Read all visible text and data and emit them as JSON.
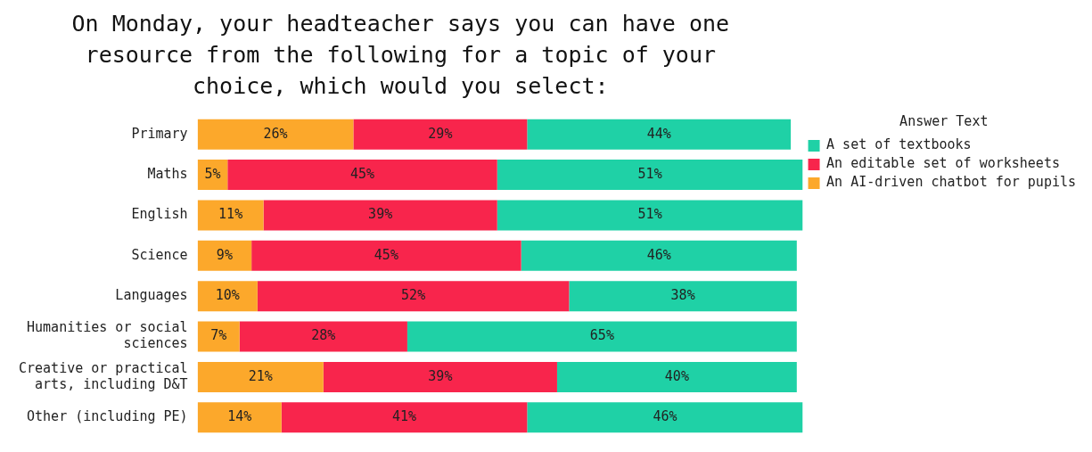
{
  "chart_data": {
    "type": "bar",
    "orientation": "horizontal",
    "stacked": true,
    "title": "On Monday, your headteacher says you can have one resource from the following for a topic of your choice, which would you select:",
    "legend_title": "Answer Text",
    "legend": "top right",
    "tick_labels": "y",
    "grid": false,
    "categories": [
      "Primary",
      "Maths",
      "English",
      "Science",
      "Languages",
      "Humanities or social sciences",
      "Creative or practical arts, including D&T",
      "Other (including PE)"
    ],
    "series": [
      {
        "name": "An AI-driven chatbot for pupils",
        "color": "#fca82b",
        "values": [
          26,
          5,
          11,
          9,
          10,
          7,
          21,
          14
        ],
        "value_labels": [
          "26%",
          "5%",
          "11%",
          "9%",
          "10%",
          "7%",
          "21%",
          "14%"
        ]
      },
      {
        "name": "An editable set of worksheets",
        "color": "#f8254c",
        "values": [
          29,
          45,
          39,
          45,
          52,
          28,
          39,
          41
        ],
        "value_labels": [
          "29%",
          "45%",
          "39%",
          "45%",
          "52%",
          "28%",
          "39%",
          "41%"
        ]
      },
      {
        "name": "A set of textbooks",
        "color": "#1fd1a6",
        "values": [
          44,
          51,
          51,
          46,
          38,
          65,
          40,
          46
        ],
        "value_labels": [
          "44%",
          "51%",
          "51%",
          "46%",
          "38%",
          "65%",
          "40%",
          "46%"
        ]
      }
    ]
  }
}
